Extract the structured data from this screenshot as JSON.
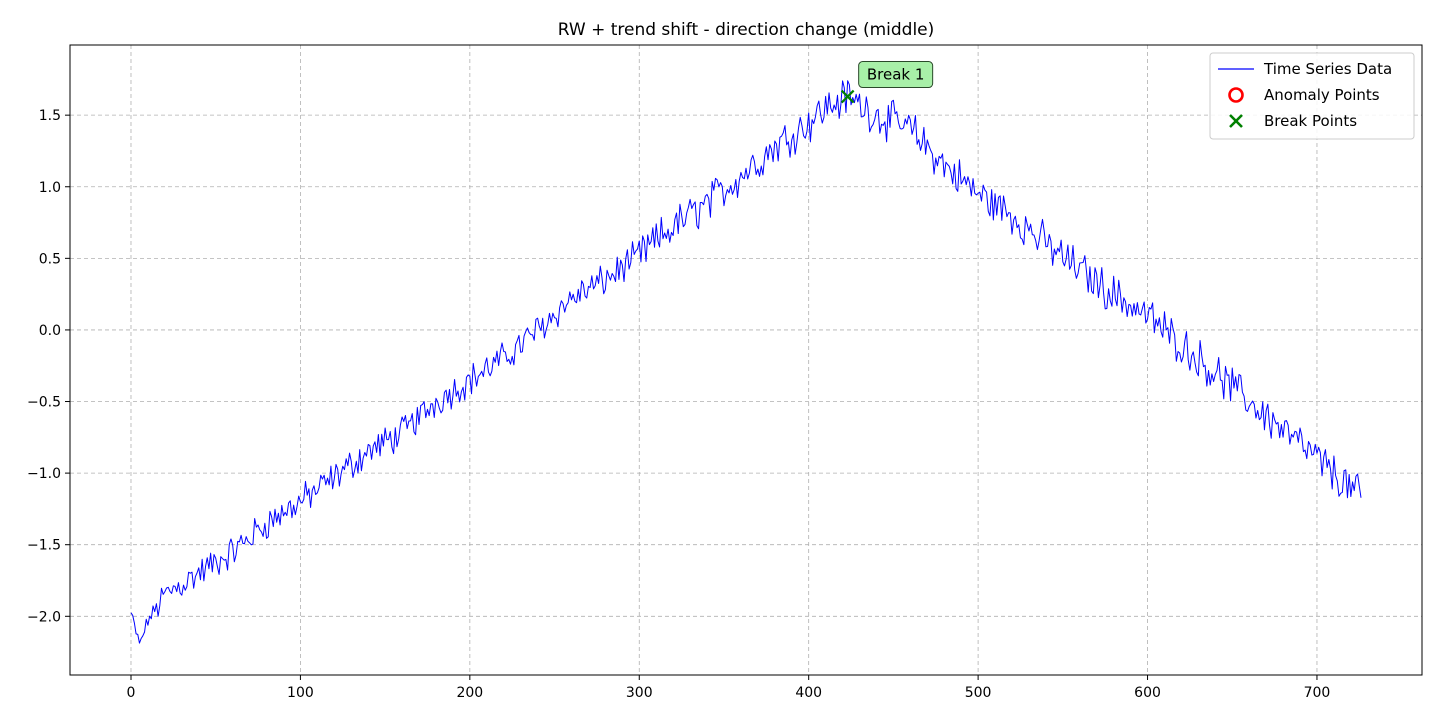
{
  "chart_data": {
    "type": "line",
    "title": "RW + trend shift - direction change (middle)",
    "xlabel": "",
    "ylabel": "",
    "xlim": [
      -36,
      762
    ],
    "ylim": [
      -2.41,
      1.99
    ],
    "x_ticks": [
      0,
      100,
      200,
      300,
      400,
      500,
      600,
      700
    ],
    "y_ticks": [
      -2.0,
      -1.5,
      -1.0,
      -0.5,
      0.0,
      0.5,
      1.0,
      1.5
    ],
    "grid": true,
    "legend_position": "top-right",
    "legend": [
      {
        "label": "Time Series Data",
        "marker": "line",
        "color": "#0000ff"
      },
      {
        "label": "Anomaly Points",
        "marker": "circle",
        "color": "#ff0000"
      },
      {
        "label": "Break Points",
        "marker": "x",
        "color": "#008000"
      }
    ],
    "series": [
      {
        "name": "Time Series Data",
        "color": "#0000ff",
        "n_points": 727,
        "anchors": [
          [
            0,
            -1.98
          ],
          [
            5,
            -2.2
          ],
          [
            10,
            -2.03
          ],
          [
            20,
            -1.85
          ],
          [
            40,
            -1.7
          ],
          [
            60,
            -1.55
          ],
          [
            80,
            -1.35
          ],
          [
            100,
            -1.2
          ],
          [
            120,
            -1.03
          ],
          [
            140,
            -0.85
          ],
          [
            160,
            -0.72
          ],
          [
            180,
            -0.5
          ],
          [
            200,
            -0.35
          ],
          [
            220,
            -0.2
          ],
          [
            240,
            0.0
          ],
          [
            260,
            0.22
          ],
          [
            280,
            0.35
          ],
          [
            300,
            0.52
          ],
          [
            320,
            0.72
          ],
          [
            340,
            0.88
          ],
          [
            360,
            1.08
          ],
          [
            380,
            1.28
          ],
          [
            400,
            1.45
          ],
          [
            410,
            1.55
          ],
          [
            423,
            1.63
          ],
          [
            440,
            1.5
          ],
          [
            460,
            1.4
          ],
          [
            480,
            1.15
          ],
          [
            500,
            0.95
          ],
          [
            520,
            0.8
          ],
          [
            540,
            0.6
          ],
          [
            560,
            0.42
          ],
          [
            580,
            0.25
          ],
          [
            600,
            0.1
          ],
          [
            620,
            -0.1
          ],
          [
            640,
            -0.3
          ],
          [
            660,
            -0.5
          ],
          [
            680,
            -0.7
          ],
          [
            700,
            -0.9
          ],
          [
            726,
            -1.17
          ]
        ]
      }
    ],
    "anomaly_points": [],
    "break_points": [
      {
        "x": 423,
        "y": 1.63,
        "label": "Break 1"
      }
    ]
  }
}
